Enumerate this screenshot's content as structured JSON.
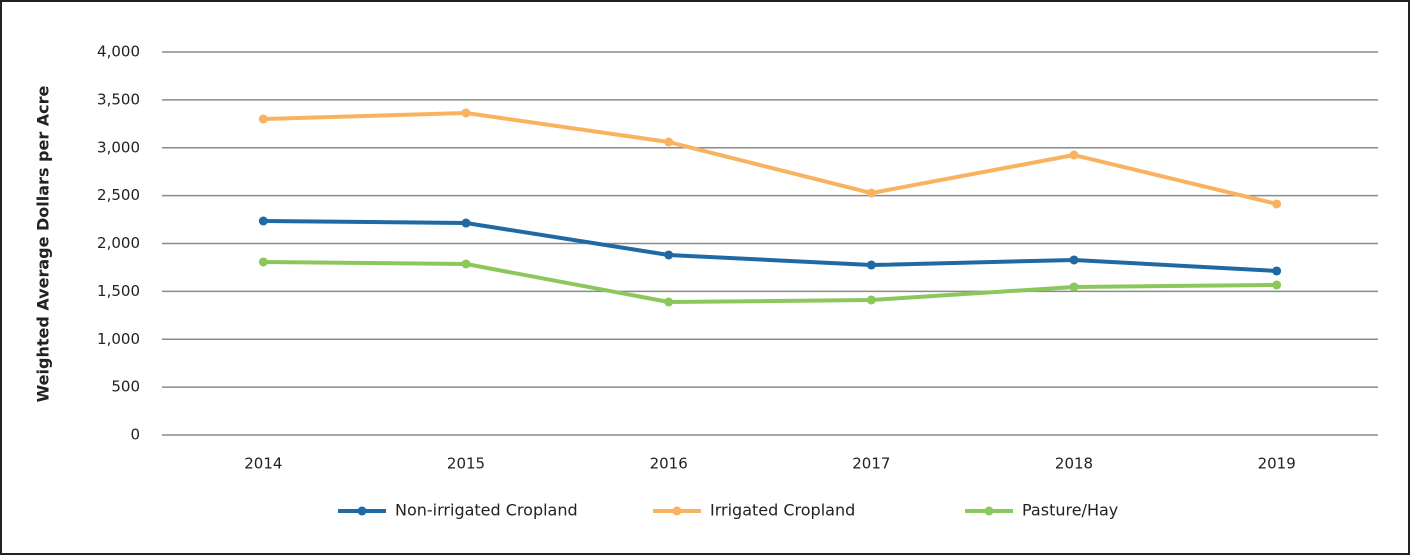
{
  "chart_data": {
    "type": "line",
    "y_label": "Weighted Average Dollars per Acre",
    "categories": [
      "2014",
      "2015",
      "2016",
      "2017",
      "2018",
      "2019"
    ],
    "series": [
      {
        "name": "Non-irrigated Cropland",
        "color": "#1f6aa5",
        "values": [
          2235,
          2214,
          1880,
          1775,
          1828,
          1713
        ]
      },
      {
        "name": "Irrigated Cropland",
        "color": "#f9b25f",
        "values": [
          3300,
          3363,
          3060,
          2527,
          2924,
          2413
        ]
      },
      {
        "name": "Pasture/Hay",
        "color": "#8cc75a",
        "values": [
          1807,
          1786,
          1389,
          1410,
          1546,
          1567
        ]
      }
    ],
    "ylim": [
      0,
      4000
    ],
    "yticks": [
      0,
      500,
      {
        "value": 1000,
        "label": "1,000"
      },
      {
        "value": 1500,
        "label": "1,500"
      },
      {
        "value": 2000,
        "label": "2,000"
      },
      {
        "value": 2500,
        "label": "2,500"
      },
      {
        "value": 3000,
        "label": "3,000"
      },
      {
        "value": 3500,
        "label": "3,500"
      },
      {
        "value": 4000,
        "label": "4,000"
      }
    ],
    "grid": true,
    "legend": "bottom"
  }
}
